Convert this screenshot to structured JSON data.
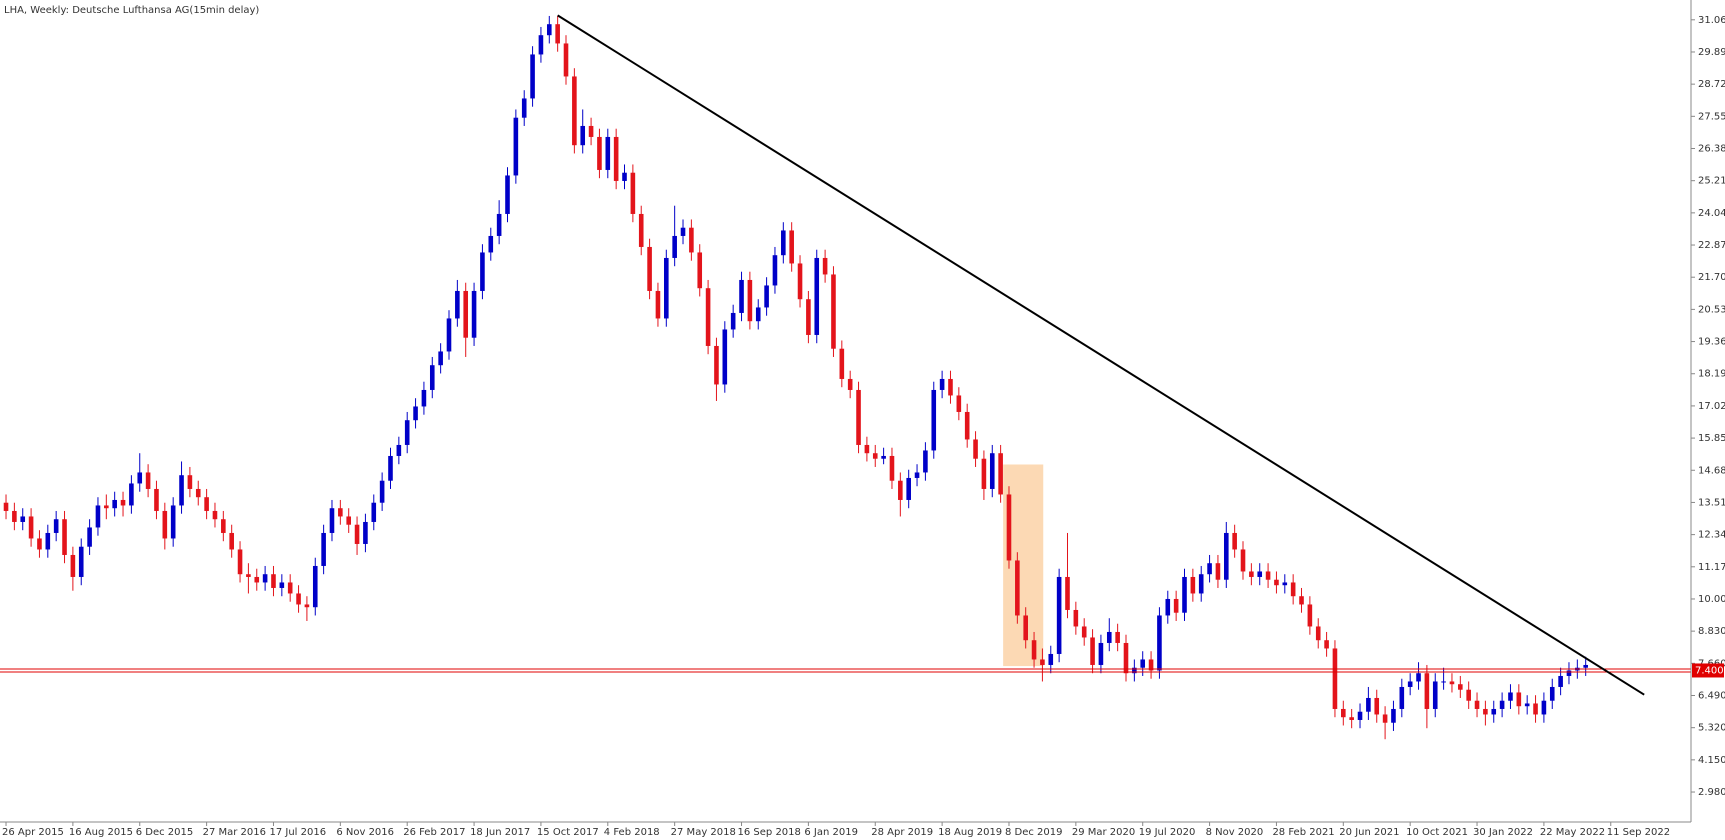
{
  "chart_data": {
    "type": "candlestick",
    "title": "LHA, Weekly:  Deutsche Lufthansa AG(15min delay)",
    "up_color": "#0000c8",
    "down_color": "#e3141b",
    "xlim": [
      -0.72,
      201.6
    ],
    "ylim": [
      1.89,
      31.78
    ],
    "xticks": [
      {
        "value": 0,
        "label": "26 Apr 2015"
      },
      {
        "value": 8,
        "label": "16 Aug 2015"
      },
      {
        "value": 16,
        "label": "6 Dec 2015"
      },
      {
        "value": 24,
        "label": "27 Mar 2016"
      },
      {
        "value": 32,
        "label": "17 Jul 2016"
      },
      {
        "value": 40,
        "label": "6 Nov 2016"
      },
      {
        "value": 48,
        "label": "26 Feb 2017"
      },
      {
        "value": 56,
        "label": "18 Jun 2017"
      },
      {
        "value": 64,
        "label": "15 Oct 2017"
      },
      {
        "value": 72,
        "label": "4 Feb 2018"
      },
      {
        "value": 80,
        "label": "27 May 2018"
      },
      {
        "value": 88,
        "label": "16 Sep 2018"
      },
      {
        "value": 96,
        "label": "6 Jan 2019"
      },
      {
        "value": 104,
        "label": "28 Apr 2019"
      },
      {
        "value": 112,
        "label": "18 Aug 2019"
      },
      {
        "value": 120,
        "label": "8 Dec 2019"
      },
      {
        "value": 128,
        "label": "29 Mar 2020"
      },
      {
        "value": 136,
        "label": "19 Jul 2020"
      },
      {
        "value": 144,
        "label": "8 Nov 2020"
      },
      {
        "value": 152,
        "label": "28 Feb 2021"
      },
      {
        "value": 160,
        "label": "20 Jun 2021"
      },
      {
        "value": 168,
        "label": "10 Oct 2021"
      },
      {
        "value": 176,
        "label": "30 Jan 2022"
      },
      {
        "value": 184,
        "label": "22 May 2022"
      },
      {
        "value": 192,
        "label": "11 Sep 2022"
      }
    ],
    "yticks": [
      {
        "value": 2.98,
        "label": "2.980"
      },
      {
        "value": 4.15,
        "label": "4.150"
      },
      {
        "value": 5.32,
        "label": "5.320"
      },
      {
        "value": 6.49,
        "label": "6.490"
      },
      {
        "value": 7.66,
        "label": "7.660"
      },
      {
        "value": 8.83,
        "label": "8.830"
      },
      {
        "value": 10,
        "label": "10.000"
      },
      {
        "value": 11.17,
        "label": "11.170"
      },
      {
        "value": 12.34,
        "label": "12.340"
      },
      {
        "value": 13.51,
        "label": "13.510"
      },
      {
        "value": 14.68,
        "label": "14.680"
      },
      {
        "value": 15.85,
        "label": "15.850"
      },
      {
        "value": 17.02,
        "label": "17.020"
      },
      {
        "value": 18.19,
        "label": "18.190"
      },
      {
        "value": 19.36,
        "label": "19.360"
      },
      {
        "value": 20.53,
        "label": "20.530"
      },
      {
        "value": 21.7,
        "label": "21.700"
      },
      {
        "value": 22.87,
        "label": "22.870"
      },
      {
        "value": 24.04,
        "label": "24.040"
      },
      {
        "value": 25.21,
        "label": "25.210"
      },
      {
        "value": 26.38,
        "label": "26.380"
      },
      {
        "value": 27.55,
        "label": "27.550"
      },
      {
        "value": 28.72,
        "label": "28.720"
      },
      {
        "value": 29.89,
        "label": "29.890"
      },
      {
        "value": 31.06,
        "label": "31.060"
      }
    ],
    "hline": {
      "value": 7.4,
      "label": "7.400",
      "color": "#e00000"
    },
    "trendline": {
      "from": [
        66,
        31.22
      ],
      "to": [
        196,
        6.52
      ],
      "color": "#000000"
    },
    "highlight": {
      "x": [
        119.3,
        124.1
      ],
      "y": [
        7.56,
        14.89
      ],
      "color": "#fcd9b4"
    },
    "ohlc": [
      [
        13.5,
        13.8,
        12.9,
        13.2
      ],
      [
        13.2,
        13.5,
        12.5,
        12.8
      ],
      [
        12.8,
        13.3,
        12.5,
        13.0
      ],
      [
        13.0,
        13.3,
        11.9,
        12.2
      ],
      [
        12.2,
        12.5,
        11.5,
        11.8
      ],
      [
        11.8,
        12.7,
        11.5,
        12.4
      ],
      [
        12.4,
        13.2,
        12.1,
        12.9
      ],
      [
        12.9,
        13.2,
        11.3,
        11.6
      ],
      [
        11.6,
        11.9,
        10.3,
        10.8
      ],
      [
        10.8,
        12.2,
        10.5,
        11.9
      ],
      [
        11.9,
        12.9,
        11.6,
        12.6
      ],
      [
        12.6,
        13.7,
        12.3,
        13.4
      ],
      [
        13.4,
        13.8,
        12.9,
        13.3
      ],
      [
        13.3,
        13.9,
        13.0,
        13.6
      ],
      [
        13.6,
        13.9,
        13.0,
        13.4
      ],
      [
        13.4,
        14.5,
        13.1,
        14.2
      ],
      [
        14.2,
        15.3,
        13.9,
        14.6
      ],
      [
        14.6,
        14.9,
        13.7,
        14.0
      ],
      [
        14.0,
        14.3,
        12.9,
        13.2
      ],
      [
        13.2,
        13.5,
        11.8,
        12.2
      ],
      [
        12.2,
        13.7,
        11.9,
        13.4
      ],
      [
        13.4,
        15.0,
        13.1,
        14.5
      ],
      [
        14.5,
        14.8,
        13.7,
        14.0
      ],
      [
        14.0,
        14.3,
        13.4,
        13.7
      ],
      [
        13.7,
        14.0,
        12.9,
        13.2
      ],
      [
        13.2,
        13.5,
        12.6,
        12.9
      ],
      [
        12.9,
        13.2,
        12.1,
        12.4
      ],
      [
        12.4,
        12.7,
        11.5,
        11.8
      ],
      [
        11.8,
        12.1,
        10.6,
        10.9
      ],
      [
        10.9,
        11.3,
        10.2,
        10.8
      ],
      [
        10.8,
        11.1,
        10.3,
        10.6
      ],
      [
        10.6,
        11.2,
        10.3,
        10.9
      ],
      [
        10.9,
        11.2,
        10.1,
        10.4
      ],
      [
        10.4,
        10.9,
        10.1,
        10.6
      ],
      [
        10.6,
        10.9,
        9.9,
        10.2
      ],
      [
        10.2,
        10.5,
        9.5,
        9.8
      ],
      [
        9.8,
        10.1,
        9.2,
        9.7
      ],
      [
        9.7,
        11.5,
        9.4,
        11.2
      ],
      [
        11.2,
        12.7,
        10.9,
        12.4
      ],
      [
        12.4,
        13.6,
        12.1,
        13.3
      ],
      [
        13.3,
        13.6,
        12.7,
        13.0
      ],
      [
        13.0,
        13.3,
        12.4,
        12.7
      ],
      [
        12.7,
        13.0,
        11.6,
        12.0
      ],
      [
        12.0,
        13.1,
        11.7,
        12.8
      ],
      [
        12.8,
        13.8,
        12.5,
        13.5
      ],
      [
        13.5,
        14.6,
        13.2,
        14.3
      ],
      [
        14.3,
        15.5,
        14.0,
        15.2
      ],
      [
        15.2,
        15.9,
        14.9,
        15.6
      ],
      [
        15.6,
        16.8,
        15.3,
        16.5
      ],
      [
        16.5,
        17.3,
        16.2,
        17.0
      ],
      [
        17.0,
        17.9,
        16.7,
        17.6
      ],
      [
        17.6,
        18.8,
        17.3,
        18.5
      ],
      [
        18.5,
        19.3,
        18.2,
        19.0
      ],
      [
        19.0,
        20.5,
        18.7,
        20.2
      ],
      [
        20.2,
        21.6,
        19.9,
        21.2
      ],
      [
        21.2,
        21.5,
        18.8,
        19.5
      ],
      [
        19.5,
        21.5,
        19.2,
        21.2
      ],
      [
        21.2,
        22.9,
        20.9,
        22.6
      ],
      [
        22.6,
        23.5,
        22.3,
        23.2
      ],
      [
        23.2,
        24.5,
        22.9,
        24.0
      ],
      [
        24.0,
        25.7,
        23.7,
        25.4
      ],
      [
        25.4,
        27.8,
        25.1,
        27.5
      ],
      [
        27.5,
        28.5,
        27.2,
        28.2
      ],
      [
        28.2,
        30.1,
        27.9,
        29.8
      ],
      [
        29.8,
        30.8,
        29.5,
        30.5
      ],
      [
        30.5,
        31.2,
        30.2,
        30.9
      ],
      [
        30.9,
        31.2,
        29.9,
        30.2
      ],
      [
        30.2,
        30.5,
        28.7,
        29.0
      ],
      [
        29.0,
        29.3,
        26.2,
        26.5
      ],
      [
        26.5,
        27.8,
        26.2,
        27.2
      ],
      [
        27.2,
        27.5,
        26.5,
        26.8
      ],
      [
        26.8,
        27.1,
        25.3,
        25.6
      ],
      [
        25.6,
        27.1,
        25.3,
        26.8
      ],
      [
        26.8,
        27.1,
        24.9,
        25.2
      ],
      [
        25.2,
        25.8,
        24.9,
        25.5
      ],
      [
        25.5,
        25.8,
        23.7,
        24.0
      ],
      [
        24.0,
        24.3,
        22.5,
        22.8
      ],
      [
        22.8,
        23.1,
        20.9,
        21.2
      ],
      [
        21.2,
        21.5,
        19.9,
        20.2
      ],
      [
        20.2,
        22.7,
        19.9,
        22.4
      ],
      [
        22.4,
        24.3,
        22.1,
        23.2
      ],
      [
        23.2,
        23.8,
        22.9,
        23.5
      ],
      [
        23.5,
        23.8,
        22.3,
        22.6
      ],
      [
        22.6,
        22.9,
        21.0,
        21.3
      ],
      [
        21.3,
        21.6,
        18.9,
        19.2
      ],
      [
        19.2,
        19.5,
        17.2,
        17.8
      ],
      [
        17.8,
        20.1,
        17.5,
        19.8
      ],
      [
        19.8,
        20.7,
        19.5,
        20.4
      ],
      [
        20.4,
        21.9,
        20.1,
        21.6
      ],
      [
        21.6,
        21.9,
        19.8,
        20.1
      ],
      [
        20.1,
        20.9,
        19.8,
        20.6
      ],
      [
        20.6,
        21.7,
        20.3,
        21.4
      ],
      [
        21.4,
        22.8,
        21.1,
        22.5
      ],
      [
        22.5,
        23.7,
        22.2,
        23.4
      ],
      [
        23.4,
        23.7,
        21.9,
        22.2
      ],
      [
        22.2,
        22.5,
        20.6,
        20.9
      ],
      [
        20.9,
        21.2,
        19.3,
        19.6
      ],
      [
        19.6,
        22.7,
        19.3,
        22.4
      ],
      [
        22.4,
        22.7,
        21.5,
        21.8
      ],
      [
        21.8,
        22.1,
        18.8,
        19.1
      ],
      [
        19.1,
        19.4,
        17.7,
        18.0
      ],
      [
        18.0,
        18.3,
        17.3,
        17.6
      ],
      [
        17.6,
        17.9,
        15.3,
        15.6
      ],
      [
        15.6,
        15.9,
        15.0,
        15.3
      ],
      [
        15.3,
        15.6,
        14.8,
        15.1
      ],
      [
        15.1,
        15.5,
        14.9,
        15.2
      ],
      [
        15.2,
        15.5,
        14.0,
        14.3
      ],
      [
        14.3,
        14.6,
        13.0,
        13.6
      ],
      [
        13.6,
        14.7,
        13.3,
        14.4
      ],
      [
        14.4,
        14.9,
        14.1,
        14.6
      ],
      [
        14.6,
        15.7,
        14.3,
        15.4
      ],
      [
        15.4,
        17.9,
        15.1,
        17.6
      ],
      [
        17.6,
        18.3,
        17.3,
        18.0
      ],
      [
        18.0,
        18.3,
        17.1,
        17.4
      ],
      [
        17.4,
        17.7,
        16.5,
        16.8
      ],
      [
        16.8,
        17.1,
        15.5,
        15.8
      ],
      [
        15.8,
        16.1,
        14.8,
        15.1
      ],
      [
        15.1,
        15.4,
        13.6,
        14.0
      ],
      [
        14.0,
        15.6,
        13.7,
        15.3
      ],
      [
        15.3,
        15.6,
        13.5,
        13.8
      ],
      [
        13.8,
        14.1,
        11.1,
        11.4
      ],
      [
        11.4,
        11.7,
        9.1,
        9.4
      ],
      [
        9.4,
        9.7,
        8.2,
        8.5
      ],
      [
        8.5,
        8.8,
        7.5,
        7.8
      ],
      [
        7.8,
        8.2,
        7.0,
        7.6
      ],
      [
        7.6,
        8.3,
        7.3,
        8.0
      ],
      [
        8.0,
        11.1,
        7.7,
        10.8
      ],
      [
        10.8,
        12.4,
        9.3,
        9.6
      ],
      [
        9.6,
        9.9,
        8.7,
        9.0
      ],
      [
        9.0,
        9.3,
        8.3,
        8.6
      ],
      [
        8.6,
        8.9,
        7.3,
        7.6
      ],
      [
        7.6,
        8.7,
        7.3,
        8.4
      ],
      [
        8.4,
        9.3,
        8.1,
        8.8
      ],
      [
        8.8,
        9.1,
        8.1,
        8.4
      ],
      [
        8.4,
        8.7,
        7.0,
        7.3
      ],
      [
        7.3,
        7.8,
        7.0,
        7.5
      ],
      [
        7.5,
        8.1,
        7.2,
        7.8
      ],
      [
        7.8,
        8.1,
        7.1,
        7.4
      ],
      [
        7.4,
        9.7,
        7.1,
        9.4
      ],
      [
        9.4,
        10.3,
        9.1,
        10.0
      ],
      [
        10.0,
        10.3,
        9.2,
        9.5
      ],
      [
        9.5,
        11.1,
        9.2,
        10.8
      ],
      [
        10.8,
        11.1,
        9.9,
        10.2
      ],
      [
        10.2,
        11.2,
        9.9,
        10.9
      ],
      [
        10.9,
        11.6,
        10.6,
        11.3
      ],
      [
        11.3,
        11.6,
        10.4,
        10.7
      ],
      [
        10.7,
        12.8,
        10.4,
        12.4
      ],
      [
        12.4,
        12.7,
        11.5,
        11.8
      ],
      [
        11.8,
        12.1,
        10.7,
        11.0
      ],
      [
        11.0,
        11.3,
        10.5,
        10.8
      ],
      [
        10.8,
        11.3,
        10.5,
        11.0
      ],
      [
        11.0,
        11.3,
        10.4,
        10.7
      ],
      [
        10.7,
        11.0,
        10.2,
        10.5
      ],
      [
        10.5,
        10.9,
        10.2,
        10.6
      ],
      [
        10.6,
        10.9,
        9.8,
        10.1
      ],
      [
        10.1,
        10.4,
        9.5,
        9.8
      ],
      [
        9.8,
        10.1,
        8.7,
        9.0
      ],
      [
        9.0,
        9.3,
        8.2,
        8.5
      ],
      [
        8.5,
        8.8,
        7.9,
        8.2
      ],
      [
        8.2,
        8.5,
        5.7,
        6.0
      ],
      [
        6.0,
        6.3,
        5.4,
        5.7
      ],
      [
        5.7,
        6.0,
        5.3,
        5.6
      ],
      [
        5.6,
        6.2,
        5.3,
        5.9
      ],
      [
        5.9,
        6.8,
        5.6,
        6.4
      ],
      [
        6.4,
        6.7,
        5.5,
        5.8
      ],
      [
        5.8,
        6.1,
        4.9,
        5.5
      ],
      [
        5.5,
        6.3,
        5.2,
        6.0
      ],
      [
        6.0,
        7.1,
        5.7,
        6.8
      ],
      [
        6.8,
        7.3,
        6.5,
        7.0
      ],
      [
        7.0,
        7.7,
        6.7,
        7.3
      ],
      [
        7.3,
        7.6,
        5.3,
        6.0
      ],
      [
        6.0,
        7.3,
        5.7,
        7.0
      ],
      [
        7.0,
        7.5,
        6.7,
        7.0
      ],
      [
        7.0,
        7.3,
        6.6,
        6.9
      ],
      [
        6.9,
        7.2,
        6.4,
        6.7
      ],
      [
        6.7,
        7.0,
        6.0,
        6.3
      ],
      [
        6.3,
        6.6,
        5.7,
        6.0
      ],
      [
        6.0,
        6.3,
        5.4,
        5.8
      ],
      [
        5.8,
        6.3,
        5.5,
        6.0
      ],
      [
        6.0,
        6.6,
        5.7,
        6.3
      ],
      [
        6.3,
        6.9,
        6.0,
        6.6
      ],
      [
        6.6,
        6.9,
        5.8,
        6.1
      ],
      [
        6.1,
        6.5,
        5.8,
        6.2
      ],
      [
        6.2,
        6.5,
        5.5,
        5.8
      ],
      [
        5.8,
        6.6,
        5.5,
        6.3
      ],
      [
        6.3,
        7.1,
        6.0,
        6.8
      ],
      [
        6.8,
        7.5,
        6.5,
        7.2
      ],
      [
        7.2,
        7.7,
        6.9,
        7.4
      ],
      [
        7.4,
        7.8,
        7.1,
        7.5
      ],
      [
        7.5,
        7.9,
        7.2,
        7.6
      ]
    ]
  }
}
